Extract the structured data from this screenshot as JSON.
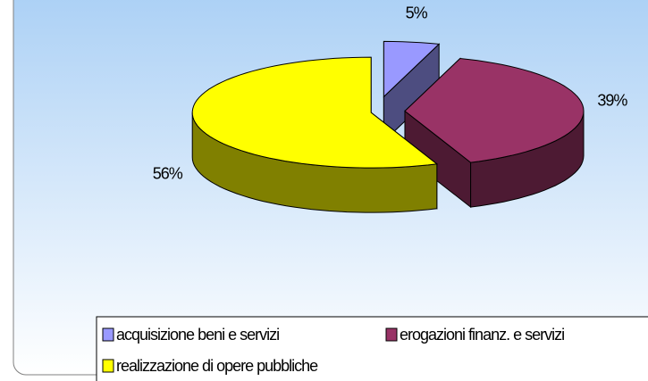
{
  "chart_data": {
    "type": "pie3d",
    "categories": [
      "acquisizione beni e servizi",
      "erogazioni finanz. e servizi",
      "realizzazione di opere pubbliche"
    ],
    "values": [
      5,
      39,
      56
    ],
    "value_labels": [
      "5%",
      "39%",
      "56%"
    ],
    "colors": [
      "#9999ff",
      "#993366",
      "#ffff00"
    ]
  }
}
